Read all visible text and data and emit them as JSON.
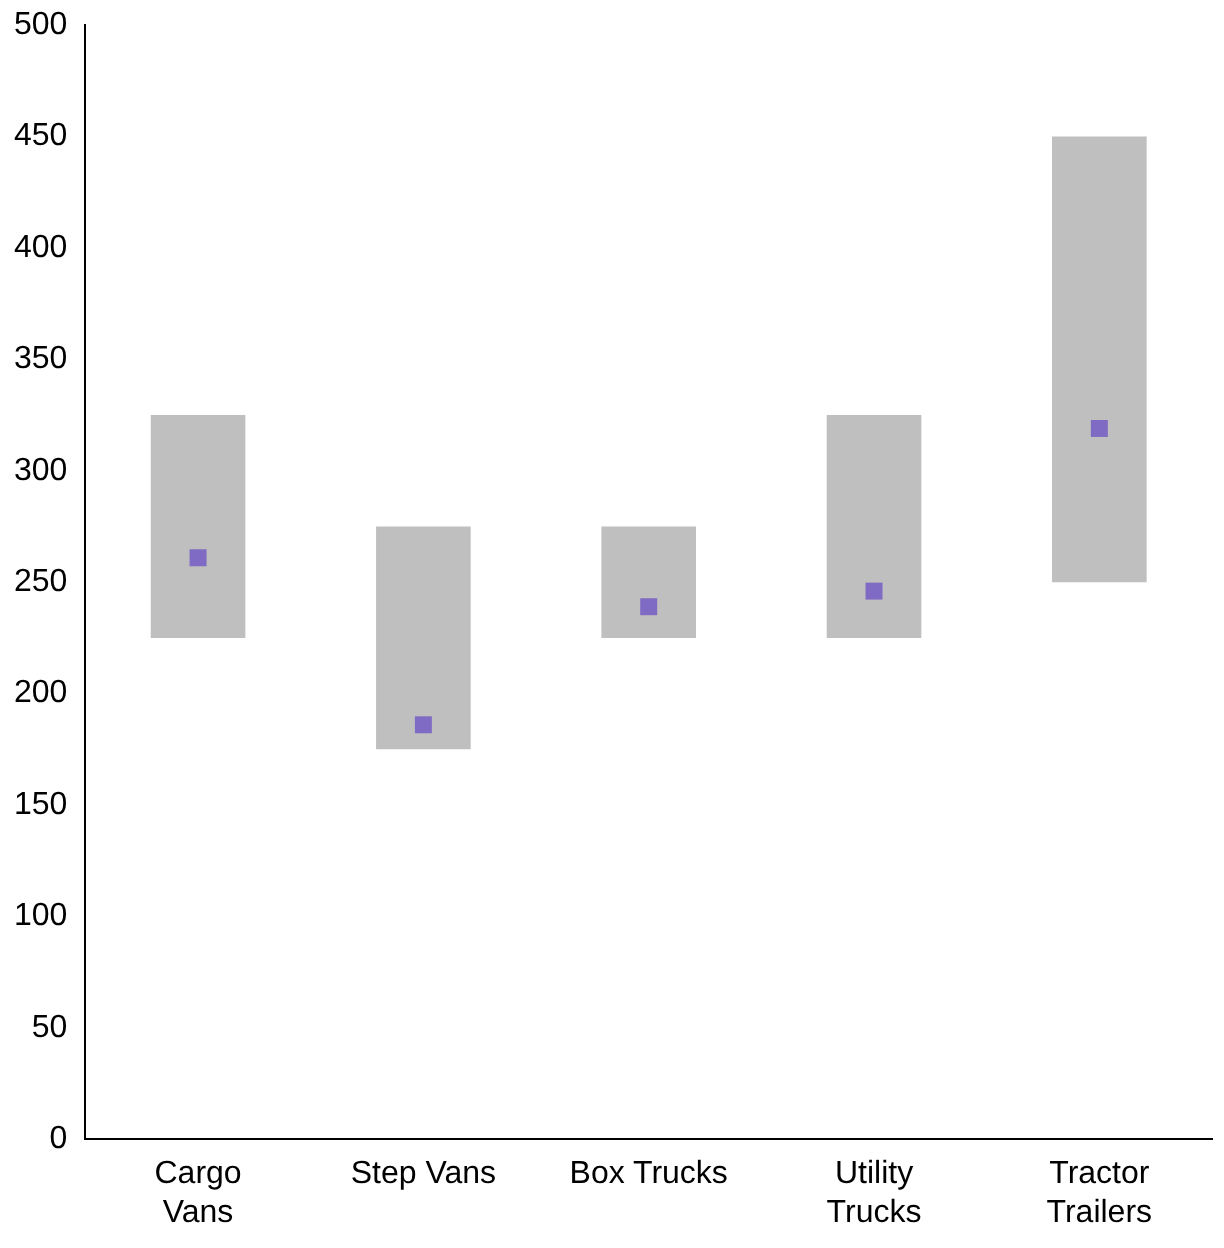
{
  "chart_data": {
    "type": "bar",
    "categories": [
      "Cargo\nVans",
      "Step Vans",
      "Box Trucks",
      "Utility\nTrucks",
      "Tractor\nTrailers"
    ],
    "series": [
      {
        "type": "bar",
        "color": "#bfbfbf",
        "base": [
          225,
          175,
          225,
          225,
          250
        ],
        "values": [
          100,
          100,
          50,
          100,
          200
        ]
      },
      {
        "type": "scatter",
        "color": "#7f6bc4",
        "marker": "square",
        "x": [
          "Cargo\nVans",
          "Step Vans",
          "Box Trucks",
          "Utility\nTrucks",
          "Tractor\nTrailers"
        ],
        "values": [
          261,
          186,
          239,
          246,
          319
        ]
      }
    ],
    "ylim": [
      0,
      500
    ],
    "yticks": [
      0,
      50,
      100,
      150,
      200,
      250,
      300,
      350,
      400,
      450,
      500
    ],
    "grid": false,
    "legend": false
  }
}
